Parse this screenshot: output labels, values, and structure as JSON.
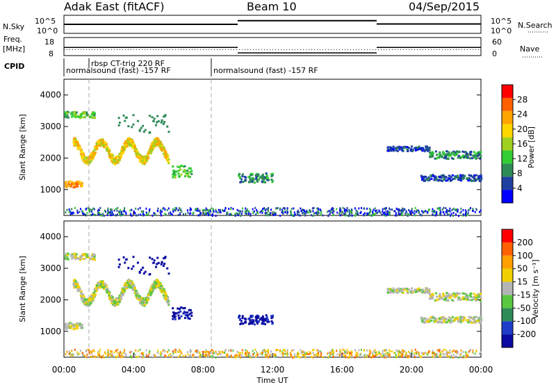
{
  "header": {
    "station": "Adak East (fitACF)",
    "beam": "Beam 10",
    "date": "04/Sep/2015"
  },
  "noise_panel": {
    "left_label": "N.Sky",
    "right_label": "N.Search",
    "ticks_left": [
      "10^5",
      "10^0"
    ],
    "ticks_right": [
      "10^5",
      "10^0"
    ]
  },
  "freq_panel": {
    "left_label_1": "Freq.",
    "left_label_2": "[MHz]",
    "right_label": "Nave",
    "ticks_left": [
      "18",
      "8"
    ],
    "ticks_right": [
      "60",
      "0"
    ]
  },
  "cpid_panel": {
    "label": "CPID",
    "segments": [
      {
        "start_hour": 0,
        "end_hour": 8.5,
        "text": "normalsound (fast) -157 RF"
      },
      {
        "start_hour": 1.5,
        "end_hour": 8.5,
        "text": "rbsp CT-trig 220 RF"
      },
      {
        "start_hour": 8.5,
        "end_hour": 24,
        "text": "normalsound (fast) -157 RF"
      }
    ]
  },
  "time_axis": {
    "xlabel": "Time UT",
    "tick_labels": [
      "00:00",
      "04:00",
      "08:00",
      "12:00",
      "16:00",
      "20:00",
      "00:00"
    ]
  },
  "power_panel": {
    "ylabel": "Slant Range [km]",
    "colorbar_label": "Power [dB]",
    "colorbar_ticks": [
      "28",
      "24",
      "20",
      "16",
      "12",
      "8",
      "4"
    ],
    "colors": [
      "#0000ff",
      "#2040a0",
      "#2e8b57",
      "#32cd32",
      "#a0d020",
      "#ffd700",
      "#ffa500",
      "#ff6000",
      "#ff0000"
    ]
  },
  "velocity_panel": {
    "ylabel": "Slant Range [km]",
    "colorbar_label": "Velocity [m s⁻¹]",
    "colorbar_ticks": [
      "200",
      "100",
      "50",
      "15",
      "-15",
      "-50",
      "-100",
      "-200"
    ],
    "colors": [
      "#0a0aa0",
      "#1e3cc8",
      "#2e8b57",
      "#5ac840",
      "#b4b4b4",
      "#f0d000",
      "#ffa000",
      "#ff6000",
      "#ff0000"
    ]
  },
  "chart_data": {
    "type": "heatmap",
    "x_range_hours": [
      0,
      24
    ],
    "ylim_km": [
      180,
      4500
    ],
    "y_ticks": [
      1000,
      2000,
      3000,
      4000
    ],
    "noise_series": {
      "name": "N.Sky",
      "segments": [
        {
          "x": [
            0,
            10
          ],
          "y_log": 2.5
        },
        {
          "x": [
            10,
            18
          ],
          "y_log": 3.5
        },
        {
          "x": [
            18,
            24
          ],
          "y_log": 2.6
        }
      ]
    },
    "freq_series": {
      "name": "Freq.",
      "segments": [
        {
          "x": [
            0,
            10
          ],
          "y": 12.5
        },
        {
          "x": [
            10,
            18
          ],
          "y": 9.5
        },
        {
          "x": [
            18,
            24
          ],
          "y": 12.5
        }
      ]
    },
    "nave_series": {
      "name": "Nave",
      "segments": [
        {
          "x": [
            0,
            24
          ],
          "y": 20
        }
      ]
    },
    "echo_regions": [
      {
        "kind": "band",
        "x": [
          0,
          1.8
        ],
        "y": [
          3300,
          3500
        ],
        "power_idx": 3,
        "vel_idx": 4
      },
      {
        "kind": "wave",
        "x": [
          0.5,
          6
        ],
        "y_center": 2250,
        "amp": 300,
        "period_hours": 1.6,
        "thickness": 250,
        "power_idx": 5,
        "vel_idx": 4
      },
      {
        "kind": "band",
        "x": [
          0,
          1.0
        ],
        "y": [
          1100,
          1300
        ],
        "power_idx": 6,
        "vel_idx": 4
      },
      {
        "kind": "scatter",
        "x": [
          3,
          6
        ],
        "y": [
          2800,
          3400
        ],
        "power_idx": 2,
        "vel_idx": 0
      },
      {
        "kind": "band",
        "x": [
          6.2,
          7.3
        ],
        "y": [
          1400,
          1800
        ],
        "power_idx": 3,
        "vel_idx": 0
      },
      {
        "kind": "band",
        "x": [
          10,
          12
        ],
        "y": [
          1250,
          1550
        ],
        "power_idx": 2,
        "vel_idx": 0
      },
      {
        "kind": "band",
        "x": [
          18.5,
          21
        ],
        "y": [
          2250,
          2400
        ],
        "power_idx": 1,
        "vel_idx": 4
      },
      {
        "kind": "band",
        "x": [
          21,
          24
        ],
        "y": [
          2000,
          2250
        ],
        "power_idx": 2,
        "vel_idx": 4
      },
      {
        "kind": "band",
        "x": [
          20.5,
          24
        ],
        "y": [
          1300,
          1500
        ],
        "power_idx": 1,
        "vel_idx": 4
      },
      {
        "kind": "ground",
        "x": [
          0,
          24
        ],
        "y": [
          200,
          450
        ],
        "power_idx": 1,
        "vel_idx": 5
      }
    ]
  }
}
